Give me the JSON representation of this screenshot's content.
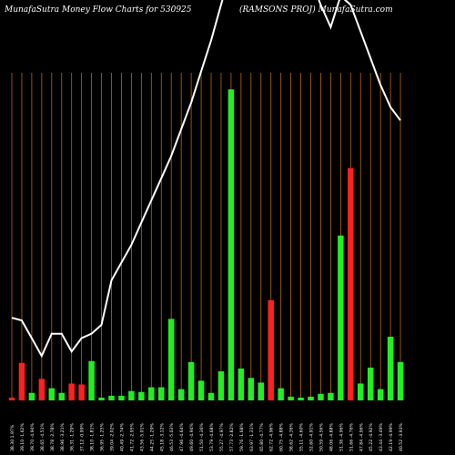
{
  "header": {
    "title_left": "MunafaSutra  Money Flow  Charts for 530925",
    "title_right": "(RAMSONS PROJ) MunafaSutra.com"
  },
  "colors": {
    "background": "#000000",
    "grid": "#b8650a",
    "up": "#22ee22",
    "down": "#ff2020",
    "line": "#ffffff",
    "text": "#ffffff"
  },
  "chart_data": {
    "type": "bar+line",
    "title": "MunafaSutra  Money Flow  Charts for 530925 (RAMSONS PROJ) MunafaSutra.com",
    "grid": true,
    "categories": [
      "38.30 1.97%",
      "39.10 -1.62%",
      "39.70 -4.94%",
      "38.65 -4.51%",
      "38.78 -2.78%",
      "38.96 -3.21%",
      "36.31 -1.29%",
      "37.12 -0.99%",
      "38.10 -1.81%",
      "36.95 -1.25%",
      "39.04 -2.02%",
      "40.49 -2.74%",
      "41.72 -2.95%",
      "43.56 -5.01%",
      "44.25 -1.29%",
      "45.18 -3.12%",
      "46.53 -5.03%",
      "47.96 -4.64%",
      "49.60 -4.94%",
      "51.50 -4.36%",
      "53.79 -4.68%",
      "55.27 -4.97%",
      "57.73 -2.82%",
      "59.76 -1.68%",
      "63.97 -1.31%",
      "65.80 -4.77%",
      "62.72 -4.96%",
      "60.75 -4.88%",
      "58.62 -4.36%",
      "55.11 -4.60%",
      "52.60 -4.91%",
      "50.59 -4.56%",
      "48.06 -4.88%",
      "51.36 -4.96%",
      "51.66 -4.76%",
      "47.84 -4.96%",
      "45.22 -4.92%",
      "43.44 -3.49%",
      "42.19 -4.99%",
      "40.52 -3.93%"
    ],
    "bars": [
      {
        "value": 3,
        "direction": "down"
      },
      {
        "value": 40,
        "direction": "down"
      },
      {
        "value": 8,
        "direction": "up"
      },
      {
        "value": 23,
        "direction": "down"
      },
      {
        "value": 13,
        "direction": "up"
      },
      {
        "value": 8,
        "direction": "up"
      },
      {
        "value": 18,
        "direction": "down"
      },
      {
        "value": 17,
        "direction": "down"
      },
      {
        "value": 42,
        "direction": "up"
      },
      {
        "value": 3,
        "direction": "up"
      },
      {
        "value": 5,
        "direction": "up"
      },
      {
        "value": 5,
        "direction": "up"
      },
      {
        "value": 10,
        "direction": "up"
      },
      {
        "value": 9,
        "direction": "up"
      },
      {
        "value": 14,
        "direction": "up"
      },
      {
        "value": 14,
        "direction": "up"
      },
      {
        "value": 87,
        "direction": "up"
      },
      {
        "value": 12,
        "direction": "up"
      },
      {
        "value": 41,
        "direction": "up"
      },
      {
        "value": 21,
        "direction": "up"
      },
      {
        "value": 8,
        "direction": "up"
      },
      {
        "value": 31,
        "direction": "up"
      },
      {
        "value": 332,
        "direction": "up"
      },
      {
        "value": 34,
        "direction": "up"
      },
      {
        "value": 24,
        "direction": "up"
      },
      {
        "value": 19,
        "direction": "up"
      },
      {
        "value": 107,
        "direction": "down"
      },
      {
        "value": 13,
        "direction": "up"
      },
      {
        "value": 4,
        "direction": "up"
      },
      {
        "value": 3,
        "direction": "up"
      },
      {
        "value": 4,
        "direction": "up"
      },
      {
        "value": 7,
        "direction": "up"
      },
      {
        "value": 8,
        "direction": "up"
      },
      {
        "value": 176,
        "direction": "up"
      },
      {
        "value": 248,
        "direction": "down"
      },
      {
        "value": 18,
        "direction": "up"
      },
      {
        "value": 35,
        "direction": "up"
      },
      {
        "value": 12,
        "direction": "up"
      },
      {
        "value": 68,
        "direction": "up"
      },
      {
        "value": 41,
        "direction": "up"
      }
    ],
    "price_line": [
      38.3,
      38.0,
      36.0,
      34.0,
      36.5,
      36.5,
      34.5,
      36.0,
      36.5,
      37.5,
      42.5,
      44.5,
      46.5,
      49.0,
      51.5,
      54.0,
      56.5,
      59.5,
      62.5,
      66.0,
      69.5,
      73.5,
      77.5,
      82.0,
      86.5,
      91.0,
      88.5,
      85.5,
      82.5,
      79.5,
      76.5,
      73.5,
      71.0,
      74.5,
      73.5,
      70.5,
      67.5,
      64.5,
      62.0,
      60.5
    ],
    "bar_ylim": [
      0,
      340
    ],
    "line_ylim": [
      29,
      72
    ]
  }
}
